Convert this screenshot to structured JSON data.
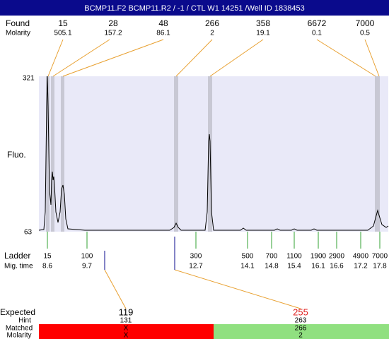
{
  "header": {
    "title": "BCMP11.F2  BCMP11.R2 / -1 / CTL W1 14251 /Well ID 1838453"
  },
  "found": {
    "label": "Found",
    "molarity_label": "Molarity",
    "sizes": [
      "15",
      "28",
      "48",
      "266",
      "358",
      "6672",
      "7000"
    ],
    "molarity": [
      "505.1",
      "157.2",
      "86.1",
      "2",
      "19.1",
      "0.1",
      "0.5"
    ]
  },
  "plot": {
    "y_label": "Fluo.",
    "y_max": "321",
    "y_min": "63"
  },
  "ladder": {
    "label": "Ladder",
    "mig_label": "Mig. time",
    "sizes": [
      "15",
      "100",
      "300",
      "500",
      "700",
      "1100",
      "1900",
      "2900",
      "4900",
      "7000"
    ],
    "mig_times": [
      "8.6",
      "9.7",
      "12.7",
      "14.1",
      "14.8",
      "15.4",
      "16.1",
      "16.6",
      "17.2",
      "17.8"
    ]
  },
  "expected": {
    "label": "Expected",
    "hint_label": "Hint",
    "matched_label": "Matched",
    "molarity_label": "Molarity",
    "items": [
      {
        "expected": "119",
        "hint": "131",
        "matched": "X",
        "molarity": "X"
      },
      {
        "expected": "255",
        "hint": "263",
        "matched": "266",
        "molarity": "2"
      }
    ]
  }
}
